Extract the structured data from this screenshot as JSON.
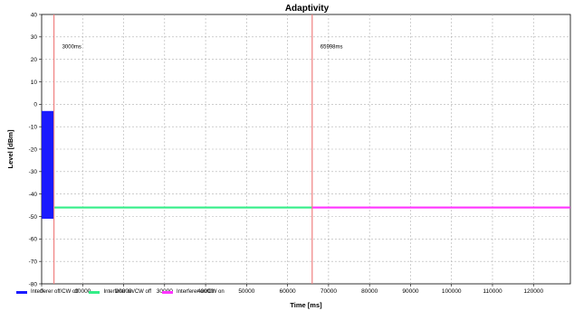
{
  "chart_data": {
    "type": "line",
    "title": "Adaptivity",
    "xlabel": "Time [ms]",
    "ylabel": "Level [dBm]",
    "xlim": [
      0,
      129000
    ],
    "ylim": [
      -80,
      40
    ],
    "x_ticks": [
      "0",
      "10000",
      "20000",
      "30000",
      "40000",
      "50000",
      "60000",
      "70000",
      "80000",
      "90000",
      "100000",
      "110000",
      "120000"
    ],
    "y_ticks": [
      "40",
      "30",
      "20",
      "10",
      "0",
      "-10",
      "-20",
      "-30",
      "-40",
      "-50",
      "-60",
      "-70",
      "-80"
    ],
    "grid": true,
    "legend_position": "bottom",
    "series": [
      {
        "name": "Interferer off/CW off",
        "color": "#1a1aff",
        "x_range": [
          0,
          3000
        ],
        "band": [
          -51,
          -3
        ]
      },
      {
        "name": "Interferer on/CW off",
        "color": "#33ee88",
        "x_range": [
          3000,
          65998
        ],
        "value": -46
      },
      {
        "name": "Interferer on/CW on",
        "color": "#ff33ff",
        "x_range": [
          65998,
          129000
        ],
        "value": -46
      }
    ],
    "markers": [
      {
        "x": 3000,
        "label": "3000ms",
        "label_y": 25,
        "color": "#f08080"
      },
      {
        "x": 65998,
        "label": "65998ms",
        "label_y": 25,
        "color": "#f08080"
      }
    ]
  }
}
